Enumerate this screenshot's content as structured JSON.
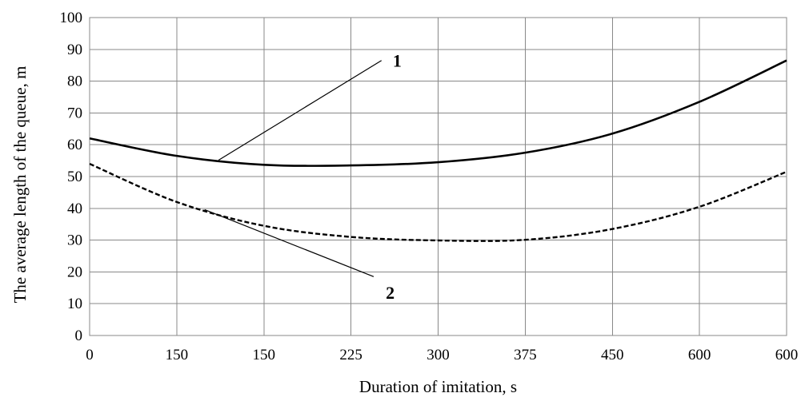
{
  "chart_data": {
    "type": "line",
    "xlabel": "Duration of imitation, s",
    "ylabel": "The average length of the queue, m",
    "x": [
      0,
      1,
      2,
      3,
      4,
      5,
      6,
      7,
      8
    ],
    "x_tick_labels": [
      "0",
      "150",
      "150",
      "225",
      "300",
      "375",
      "450",
      "600",
      "600"
    ],
    "xlim": [
      0,
      8
    ],
    "ylim": [
      0,
      100
    ],
    "y_ticks": [
      0,
      10,
      20,
      30,
      40,
      50,
      60,
      70,
      80,
      90,
      100
    ],
    "grid": true,
    "legend": "none",
    "series": [
      {
        "name": "1",
        "style": "solid",
        "color": "#000000",
        "values": [
          62,
          56.5,
          53.7,
          53.5,
          54.5,
          57.5,
          63.5,
          73.5,
          86.5
        ]
      },
      {
        "name": "2",
        "style": "dashed",
        "color": "#000000",
        "values": [
          54,
          42,
          34.5,
          31,
          29.9,
          30.1,
          33.5,
          40.5,
          51.5
        ]
      }
    ]
  }
}
